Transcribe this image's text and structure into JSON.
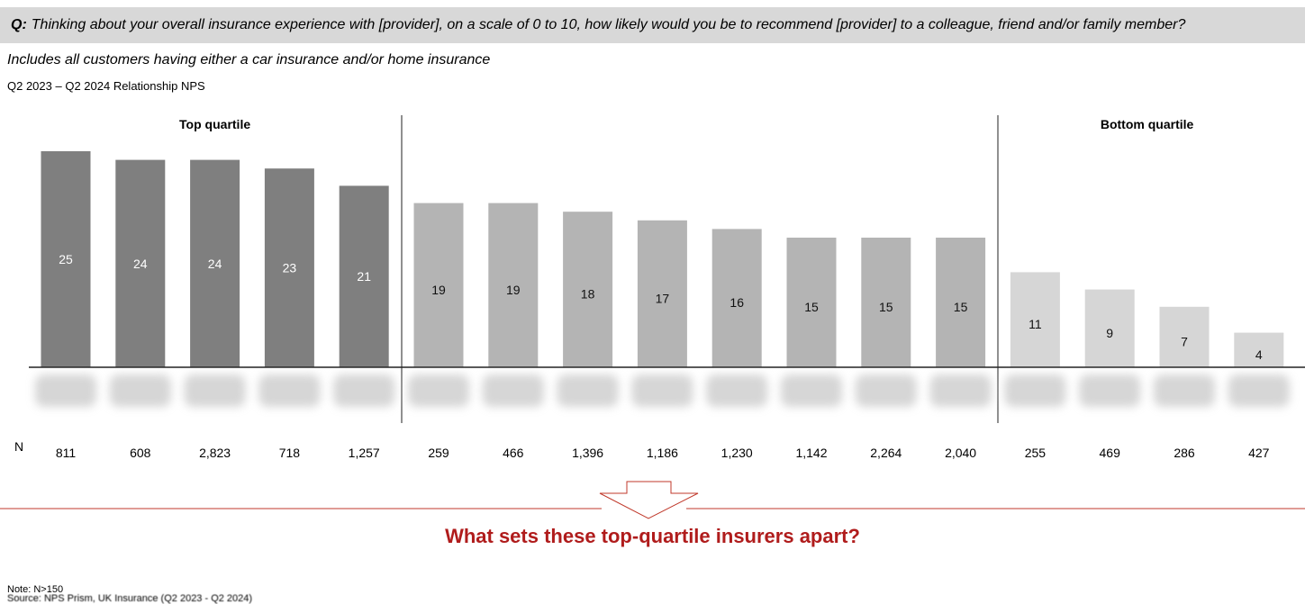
{
  "question": {
    "prefix": "Q:",
    "text": "Thinking about your overall insurance experience with [provider], on a scale of 0 to 10, how likely would you be to recommend [provider] to a colleague, friend and/or family member?"
  },
  "subtitle": "Includes all customers having either a car insurance and/or home insurance",
  "period_label": "Q2 2023 – Q2 2024 Relationship NPS",
  "tagline": "What sets these top-quartile insurers apart?",
  "note": "Note: N>150",
  "source": "Source: NPS Prism, UK Insurance (Q2 2023 - Q2 2024)",
  "colors": {
    "top_quartile": "#7f7f7f",
    "middle": "#b4b4b4",
    "bottom_quartile": "#d6d6d6",
    "accent": "#b01c1c"
  },
  "chart_data": {
    "type": "bar",
    "title": "Q2 2023 – Q2 2024 Relationship NPS",
    "categories": [
      "",
      "",
      "",
      "",
      "",
      "",
      "",
      "",
      "",
      "",
      "",
      "",
      "",
      "",
      "",
      "",
      ""
    ],
    "values": [
      25,
      24,
      24,
      23,
      21,
      19,
      19,
      18,
      17,
      16,
      15,
      15,
      15,
      11,
      9,
      7,
      4
    ],
    "n_label": "N",
    "n_values": [
      "811",
      "608",
      "2,823",
      "718",
      "1,257",
      "259",
      "466",
      "1,396",
      "1,186",
      "1,230",
      "1,142",
      "2,264",
      "2,040",
      "255",
      "469",
      "286",
      "427"
    ],
    "groups": [
      {
        "label": "Top quartile",
        "start": 0,
        "end": 4,
        "color_key": "top_quartile"
      },
      {
        "label": "",
        "start": 5,
        "end": 12,
        "color_key": "middle"
      },
      {
        "label": "Bottom quartile",
        "start": 13,
        "end": 16,
        "color_key": "bottom_quartile"
      }
    ],
    "category_labels_obscured": true,
    "ylim": [
      0,
      25
    ],
    "grid": false,
    "legend": "none"
  }
}
